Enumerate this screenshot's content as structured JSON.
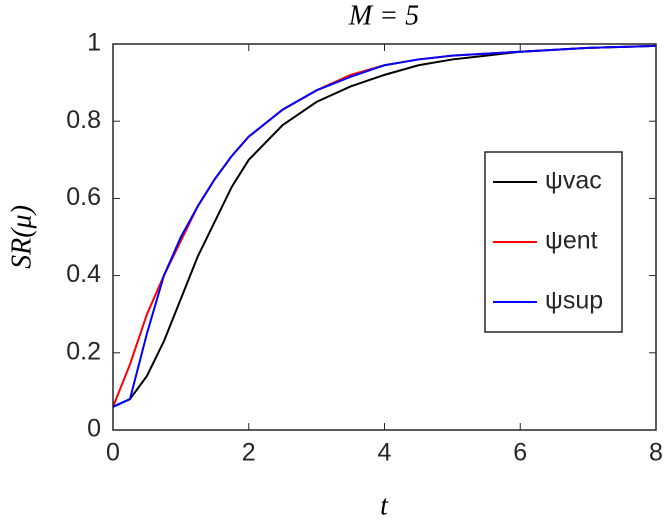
{
  "chart_data": {
    "type": "line",
    "title": "M = 5",
    "x_label": "t",
    "y_label": "SR(μ)",
    "x": [
      0,
      0.25,
      0.5,
      0.75,
      1,
      1.25,
      1.5,
      1.75,
      2,
      2.5,
      3,
      3.5,
      4,
      4.5,
      5,
      5.5,
      6,
      7,
      8
    ],
    "series": [
      {
        "name": "ψvac",
        "color": "#000000",
        "values": [
          0.06,
          0.08,
          0.14,
          0.23,
          0.34,
          0.45,
          0.54,
          0.63,
          0.7,
          0.79,
          0.85,
          0.89,
          0.92,
          0.945,
          0.96,
          0.97,
          0.98,
          0.99,
          0.995
        ]
      },
      {
        "name": "ψent",
        "color": "#ff0000",
        "values": [
          0.06,
          0.17,
          0.3,
          0.4,
          0.49,
          0.58,
          0.65,
          0.71,
          0.76,
          0.83,
          0.88,
          0.92,
          0.945,
          0.96,
          0.97,
          0.975,
          0.98,
          0.99,
          0.995
        ]
      },
      {
        "name": "ψsup",
        "color": "#0000ff",
        "values": [
          0.06,
          0.08,
          0.25,
          0.4,
          0.5,
          0.58,
          0.65,
          0.71,
          0.76,
          0.83,
          0.88,
          0.915,
          0.945,
          0.96,
          0.97,
          0.975,
          0.98,
          0.99,
          0.995
        ]
      }
    ],
    "xlim": [
      0,
      8
    ],
    "xticks": [
      0,
      2,
      4,
      6,
      8
    ],
    "ylim": [
      0,
      1
    ],
    "yticks": [
      0,
      0.2,
      0.4,
      0.6,
      0.8,
      1
    ],
    "grid": false,
    "legend": "east"
  }
}
